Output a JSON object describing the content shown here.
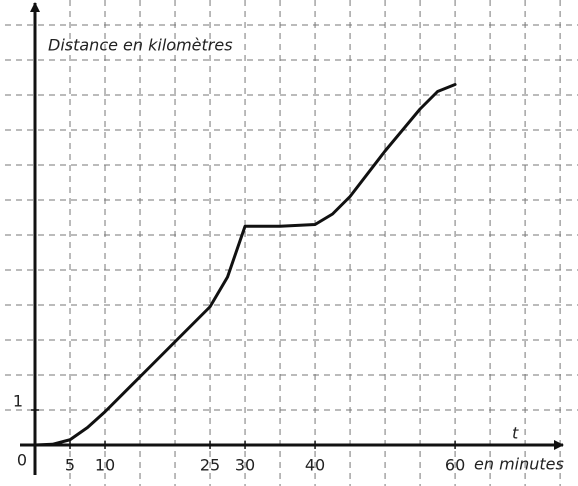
{
  "chart_data": {
    "type": "line",
    "ylabel": "Distance en kilomètres",
    "xvar": "t",
    "xlabel": "en minutes",
    "origin_label": "0",
    "x": [
      0,
      2.5,
      5,
      7.5,
      10,
      15,
      20,
      25,
      27.5,
      30,
      35,
      40,
      42.5,
      45,
      50,
      55,
      57.5,
      60
    ],
    "series": [
      {
        "color": "#111111",
        "values": [
          0,
          0.02,
          0.15,
          0.5,
          0.95,
          1.95,
          2.95,
          3.95,
          4.8,
          6.25,
          6.25,
          6.3,
          6.6,
          7.1,
          8.4,
          9.6,
          10.1,
          10.3
        ]
      }
    ],
    "xlim": [
      0,
      75.7
    ],
    "ylim": [
      0,
      12.6
    ],
    "xticks": [
      5,
      10,
      25,
      30,
      40,
      60
    ],
    "yticks": [
      1
    ],
    "xgrid": [
      5,
      10,
      15,
      20,
      25,
      30,
      35,
      40,
      45,
      50,
      55,
      60,
      65,
      70,
      75
    ],
    "ygrid": [
      1,
      2,
      3,
      4,
      5,
      6,
      7,
      8,
      9,
      10,
      11,
      12
    ],
    "grid": true
  }
}
